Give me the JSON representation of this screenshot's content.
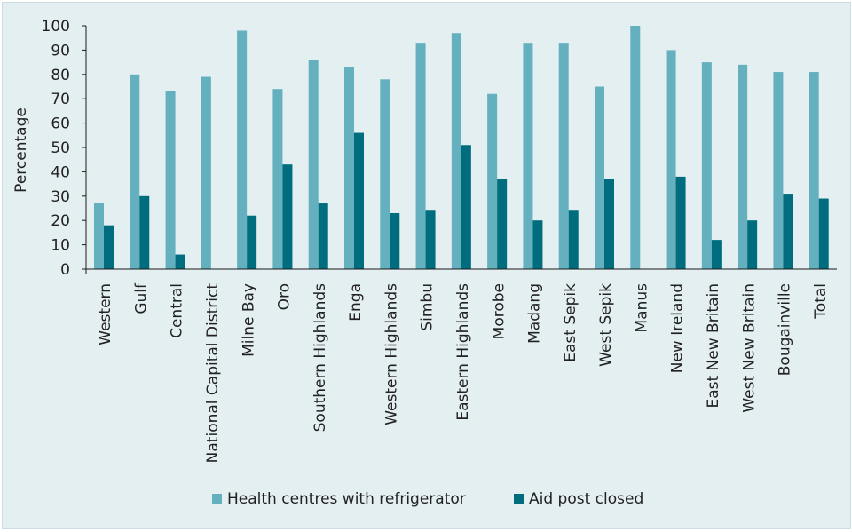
{
  "chart_data": {
    "type": "bar",
    "ylabel": "Percentage",
    "xlabel": "",
    "ylim": [
      0,
      100
    ],
    "yticks": [
      0,
      10,
      20,
      30,
      40,
      50,
      60,
      70,
      80,
      90,
      100
    ],
    "grid": false,
    "legend_position": "bottom-center",
    "categories": [
      "Western",
      "Gulf",
      "Central",
      "National Capital District",
      "Milne Bay",
      "Oro",
      "Southern Highlands",
      "Enga",
      "Western Highlands",
      "Simbu",
      "Eastern Highlands",
      "Morobe",
      "Madang",
      "East Sepik",
      "West Sepik",
      "Manus",
      "New Ireland",
      "East New Britain",
      "West New Britain",
      "Bougainville",
      "Total"
    ],
    "series": [
      {
        "name": "Health centres with refrigerator",
        "color": "#64b0bf",
        "values": [
          27,
          80,
          73,
          79,
          98,
          74,
          86,
          83,
          78,
          93,
          97,
          72,
          93,
          93,
          75,
          100,
          90,
          85,
          84,
          81,
          81
        ]
      },
      {
        "name": "Aid post closed",
        "color": "#006d7f",
        "values": [
          18,
          30,
          6,
          null,
          22,
          43,
          27,
          56,
          23,
          24,
          51,
          37,
          20,
          24,
          37,
          null,
          38,
          12,
          20,
          31,
          29
        ]
      }
    ]
  },
  "colors": {
    "background": "#e4eff2",
    "axis": "#1a1a1a"
  }
}
